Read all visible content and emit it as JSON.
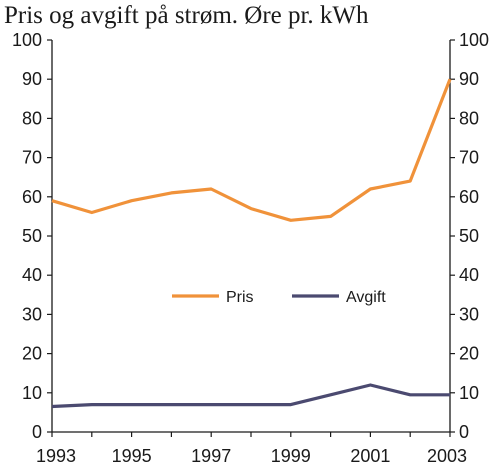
{
  "chart_data": {
    "type": "line",
    "title": "Pris og avgift på strøm. Øre pr. kWh",
    "xlabel": "",
    "ylabel": "",
    "x": [
      1993,
      1994,
      1995,
      1996,
      1997,
      1998,
      1999,
      2000,
      2001,
      2002,
      2003
    ],
    "x_tick_labels": [
      "1993",
      "1995",
      "1997",
      "1999",
      "2001",
      "2003"
    ],
    "x_tick_values": [
      1993,
      1995,
      1997,
      1999,
      2001,
      2003
    ],
    "ylim": [
      0,
      100
    ],
    "y_tick_values": [
      0,
      10,
      20,
      30,
      40,
      50,
      60,
      70,
      80,
      90,
      100
    ],
    "y_tick_labels": [
      "0",
      "10",
      "20",
      "30",
      "40",
      "50",
      "60",
      "70",
      "80",
      "90",
      "100"
    ],
    "secondary_y_axis_mirrors_primary": true,
    "grid": false,
    "legend_position": "center",
    "series": [
      {
        "name": "Pris",
        "color": "#f0923a",
        "values": [
          59,
          56,
          59,
          61,
          62,
          57,
          54,
          55,
          62,
          64,
          90
        ]
      },
      {
        "name": "Avgift",
        "color": "#4b4a70",
        "values": [
          6.5,
          7,
          7,
          7,
          7,
          7,
          7,
          9.5,
          12,
          9.5,
          9.5
        ]
      }
    ]
  }
}
